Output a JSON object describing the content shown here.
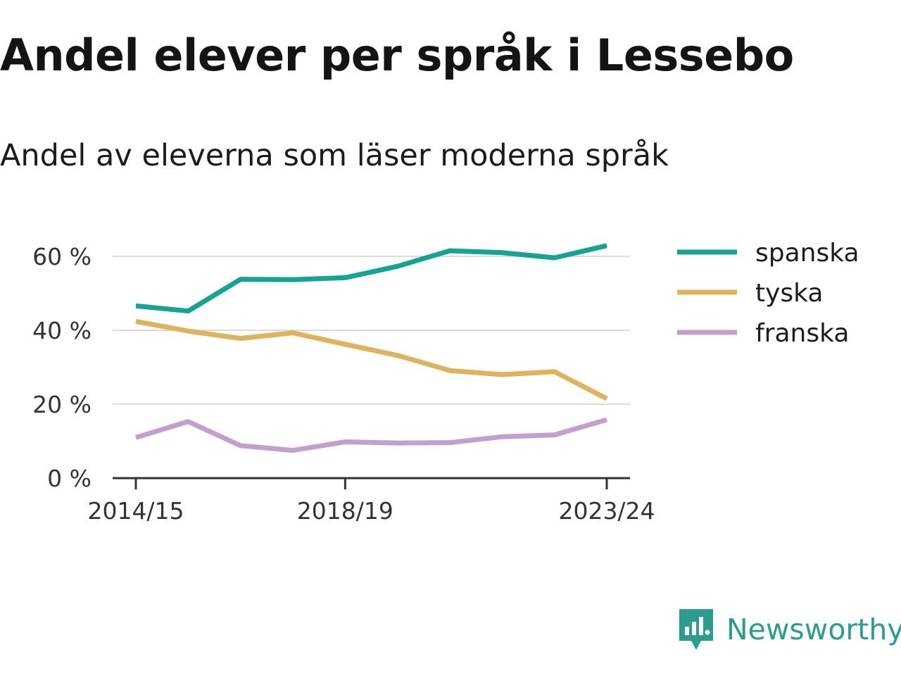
{
  "title": "Andel elever per språk i Lessebo",
  "subtitle": "Andel av eleverna som läser moderna språk",
  "brand": {
    "name": "Newsworthy",
    "icon": "newsworthy-logo-icon",
    "color": "#2a9d8f"
  },
  "chart_data": {
    "type": "line",
    "x": [
      "2014/15",
      "2015/16",
      "2016/17",
      "2017/18",
      "2018/19",
      "2019/20",
      "2020/21",
      "2021/22",
      "2022/23",
      "2023/24"
    ],
    "x_tick_labels": [
      "2014/15",
      "2018/19",
      "2023/24"
    ],
    "y_tick_labels": [
      "0 %",
      "20 %",
      "40 %",
      "60 %"
    ],
    "y_ticks": [
      0,
      20,
      40,
      60
    ],
    "ylim": [
      0,
      62
    ],
    "grid": true,
    "legend_position": "right",
    "series": [
      {
        "name": "spanska",
        "color": "#16a394",
        "values": [
          46.6,
          45.2,
          53.8,
          53.7,
          54.2,
          57.3,
          61.5,
          61.0,
          59.6,
          62.9
        ]
      },
      {
        "name": "tyska",
        "color": "#ddb35e",
        "values": [
          42.4,
          39.8,
          37.8,
          39.3,
          36.2,
          33.2,
          29.1,
          28.0,
          28.8,
          21.5
        ]
      },
      {
        "name": "franska",
        "color": "#c29fce",
        "values": [
          11.0,
          15.3,
          8.8,
          7.5,
          9.8,
          9.5,
          9.6,
          11.2,
          11.7,
          15.8
        ]
      }
    ]
  }
}
